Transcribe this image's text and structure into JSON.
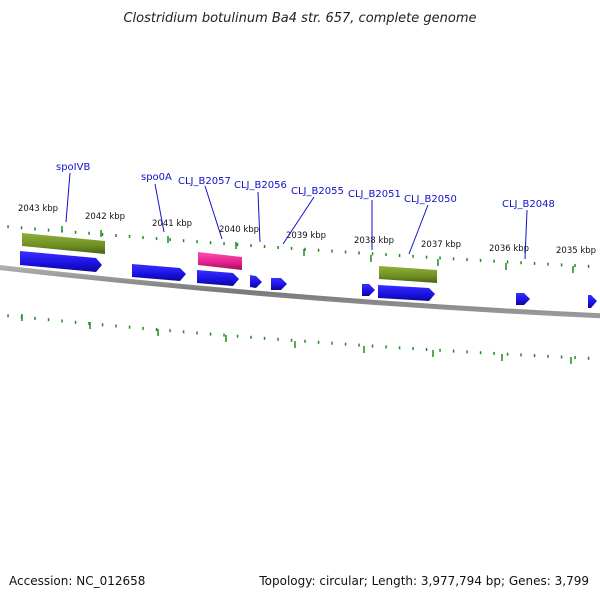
{
  "title": "Clostridium botulinum Ba4 str. 657, complete genome",
  "kbp_labels": [
    "2043 kbp",
    "2042 kbp",
    "2041 kbp",
    "2040 kbp",
    "2039 kbp",
    "2038 kbp",
    "2037 kbp",
    "2036 kbp",
    "2035 kbp"
  ],
  "gene_labels": [
    "spoIVB",
    "spo0A",
    "CLJ_B2057",
    "CLJ_B2056",
    "CLJ_B2055",
    "CLJ_B2051",
    "CLJ_B2050",
    "CLJ_B2048"
  ],
  "footer": {
    "accession": "Accession: NC_012658",
    "summary": "Topology: circular; Length: 3,977,794 bp; Genes: 3,799"
  },
  "colors": {
    "gene_forward": "#1a10e0",
    "gene_highlight": "#e0208a",
    "track_olive": "#6f8f22",
    "tick_green": "#1e8c1e",
    "backbone": "#8c8c8c",
    "label_blue": "#1010c8"
  }
}
